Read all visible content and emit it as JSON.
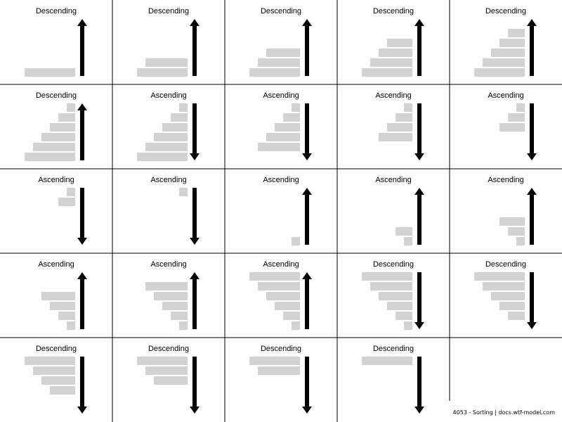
{
  "colors": {
    "bar": "#d3d3d3",
    "arrow": "#000000",
    "grid_line": "#000000",
    "background": "#ffffff"
  },
  "footer": {
    "text": "4053 - Sorting | docs.wtf-model.com"
  },
  "panels": [
    {
      "title": "Descending",
      "direction": "up",
      "bar_align": "bottom",
      "bars": [
        6
      ]
    },
    {
      "title": "Descending",
      "direction": "up",
      "bar_align": "bottom",
      "bars": [
        5,
        6
      ]
    },
    {
      "title": "Descending",
      "direction": "up",
      "bar_align": "bottom",
      "bars": [
        4,
        5,
        6
      ]
    },
    {
      "title": "Descending",
      "direction": "up",
      "bar_align": "bottom",
      "bars": [
        3,
        4,
        5,
        6
      ]
    },
    {
      "title": "Descending",
      "direction": "up",
      "bar_align": "bottom",
      "bars": [
        2,
        3,
        4,
        5,
        6
      ]
    },
    {
      "title": "Descending",
      "direction": "up",
      "bar_align": "bottom",
      "bars": [
        1,
        2,
        3,
        4,
        5,
        6
      ]
    },
    {
      "title": "Ascending",
      "direction": "down",
      "bar_align": "top",
      "bars": [
        1,
        2,
        3,
        4,
        5,
        6
      ]
    },
    {
      "title": "Ascending",
      "direction": "down",
      "bar_align": "top",
      "bars": [
        1,
        2,
        3,
        4,
        5
      ]
    },
    {
      "title": "Ascending",
      "direction": "down",
      "bar_align": "top",
      "bars": [
        1,
        2,
        3,
        4
      ]
    },
    {
      "title": "Ascending",
      "direction": "down",
      "bar_align": "top",
      "bars": [
        1,
        2,
        3
      ]
    },
    {
      "title": "Ascending",
      "direction": "down",
      "bar_align": "top",
      "bars": [
        1,
        2
      ]
    },
    {
      "title": "Ascending",
      "direction": "down",
      "bar_align": "top",
      "bars": [
        1
      ]
    },
    {
      "title": "Ascending",
      "direction": "up",
      "bar_align": "bottom",
      "bars": [
        1
      ]
    },
    {
      "title": "Ascending",
      "direction": "up",
      "bar_align": "bottom",
      "bars": [
        2,
        1
      ]
    },
    {
      "title": "Ascending",
      "direction": "up",
      "bar_align": "bottom",
      "bars": [
        3,
        2,
        1
      ]
    },
    {
      "title": "Ascending",
      "direction": "up",
      "bar_align": "bottom",
      "bars": [
        4,
        3,
        2,
        1
      ]
    },
    {
      "title": "Ascending",
      "direction": "up",
      "bar_align": "bottom",
      "bars": [
        5,
        4,
        3,
        2,
        1
      ]
    },
    {
      "title": "Ascending",
      "direction": "up",
      "bar_align": "bottom",
      "bars": [
        6,
        5,
        4,
        3,
        2,
        1
      ]
    },
    {
      "title": "Descending",
      "direction": "down",
      "bar_align": "top",
      "bars": [
        6,
        5,
        4,
        3,
        2,
        1
      ]
    },
    {
      "title": "Descending",
      "direction": "down",
      "bar_align": "top",
      "bars": [
        6,
        5,
        4,
        3,
        2
      ]
    },
    {
      "title": "Descending",
      "direction": "down",
      "bar_align": "top",
      "bars": [
        6,
        5,
        4,
        3
      ]
    },
    {
      "title": "Descending",
      "direction": "down",
      "bar_align": "top",
      "bars": [
        6,
        5,
        4
      ]
    },
    {
      "title": "Descending",
      "direction": "down",
      "bar_align": "top",
      "bars": [
        6,
        5
      ]
    },
    {
      "title": "Descending",
      "direction": "down",
      "bar_align": "top",
      "bars": [
        6
      ]
    }
  ]
}
